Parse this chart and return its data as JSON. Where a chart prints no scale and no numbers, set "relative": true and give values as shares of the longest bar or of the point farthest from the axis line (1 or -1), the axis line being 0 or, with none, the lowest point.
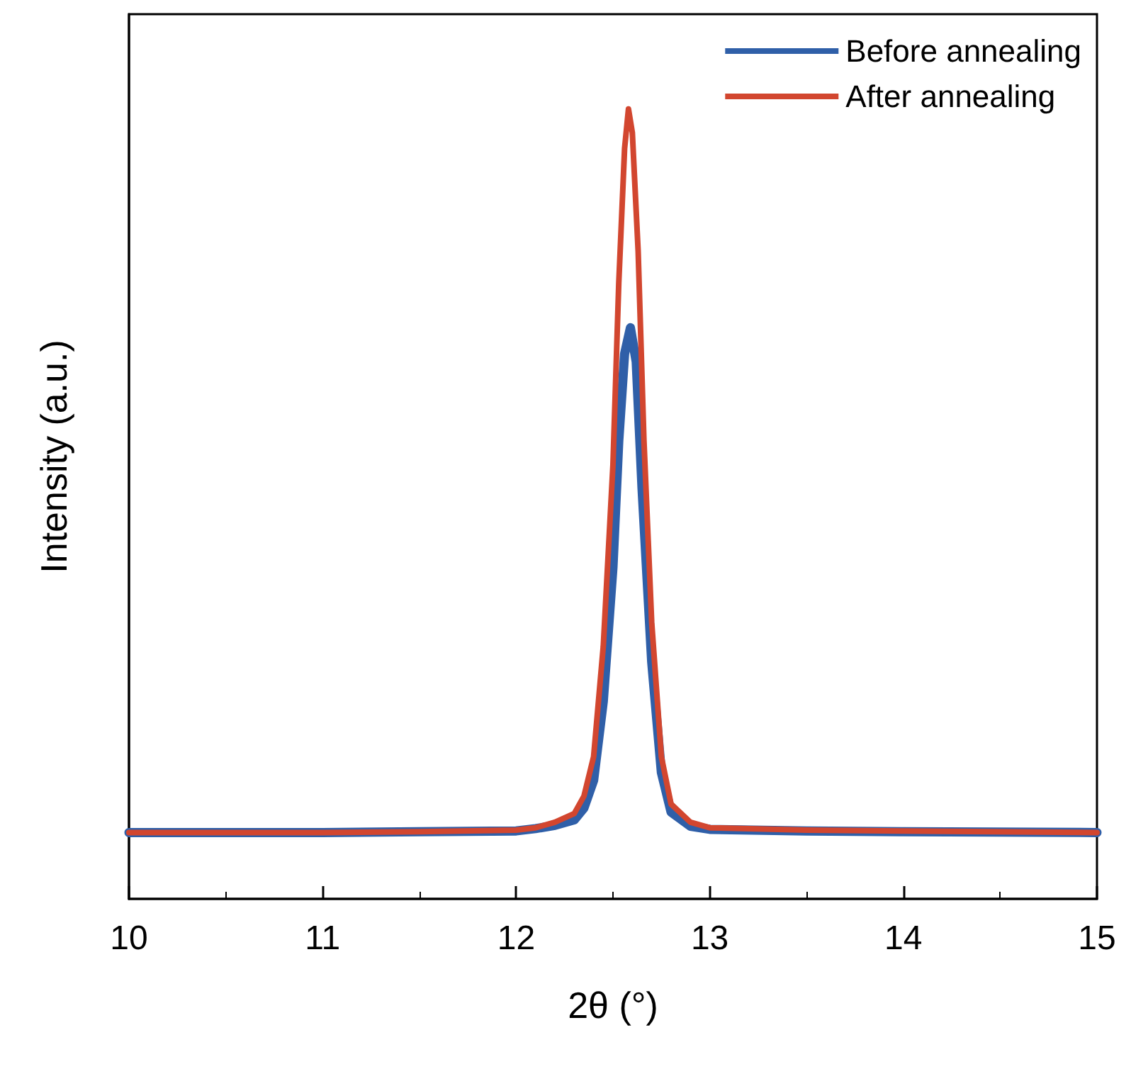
{
  "chart_data": {
    "type": "line",
    "xlabel": "2θ (°)",
    "ylabel": "Intensity (a.u.)",
    "relative": true,
    "xlim": [
      10,
      15
    ],
    "xticks": [
      10,
      11,
      12,
      13,
      14,
      15
    ],
    "legend": "top right",
    "marker": "none",
    "line_style": "solid",
    "series": [
      {
        "name": "Before annealing",
        "color": "#2f5fa8",
        "x": [
          10,
          11,
          11.5,
          12,
          12.1,
          12.2,
          12.3,
          12.35,
          12.4,
          12.45,
          12.5,
          12.53,
          12.56,
          12.59,
          12.62,
          12.65,
          12.7,
          12.75,
          12.8,
          12.9,
          13,
          13.5,
          14,
          15
        ],
        "values": [
          0.084,
          0.084,
          0.085,
          0.086,
          0.089,
          0.093,
          0.1,
          0.115,
          0.15,
          0.25,
          0.42,
          0.58,
          0.69,
          0.723,
          0.68,
          0.52,
          0.3,
          0.16,
          0.11,
          0.092,
          0.088,
          0.086,
          0.085,
          0.084
        ]
      },
      {
        "name": "After annealing",
        "color": "#d2462f",
        "x": [
          10,
          11,
          11.5,
          12,
          12.1,
          12.2,
          12.3,
          12.35,
          12.4,
          12.45,
          12.5,
          12.53,
          12.56,
          12.58,
          12.6,
          12.63,
          12.66,
          12.7,
          12.75,
          12.8,
          12.9,
          13,
          13.5,
          14,
          15
        ],
        "values": [
          0.084,
          0.084,
          0.085,
          0.087,
          0.09,
          0.097,
          0.108,
          0.13,
          0.18,
          0.32,
          0.55,
          0.78,
          0.95,
          1,
          0.97,
          0.82,
          0.58,
          0.35,
          0.18,
          0.12,
          0.097,
          0.09,
          0.087,
          0.086,
          0.084
        ]
      }
    ]
  }
}
